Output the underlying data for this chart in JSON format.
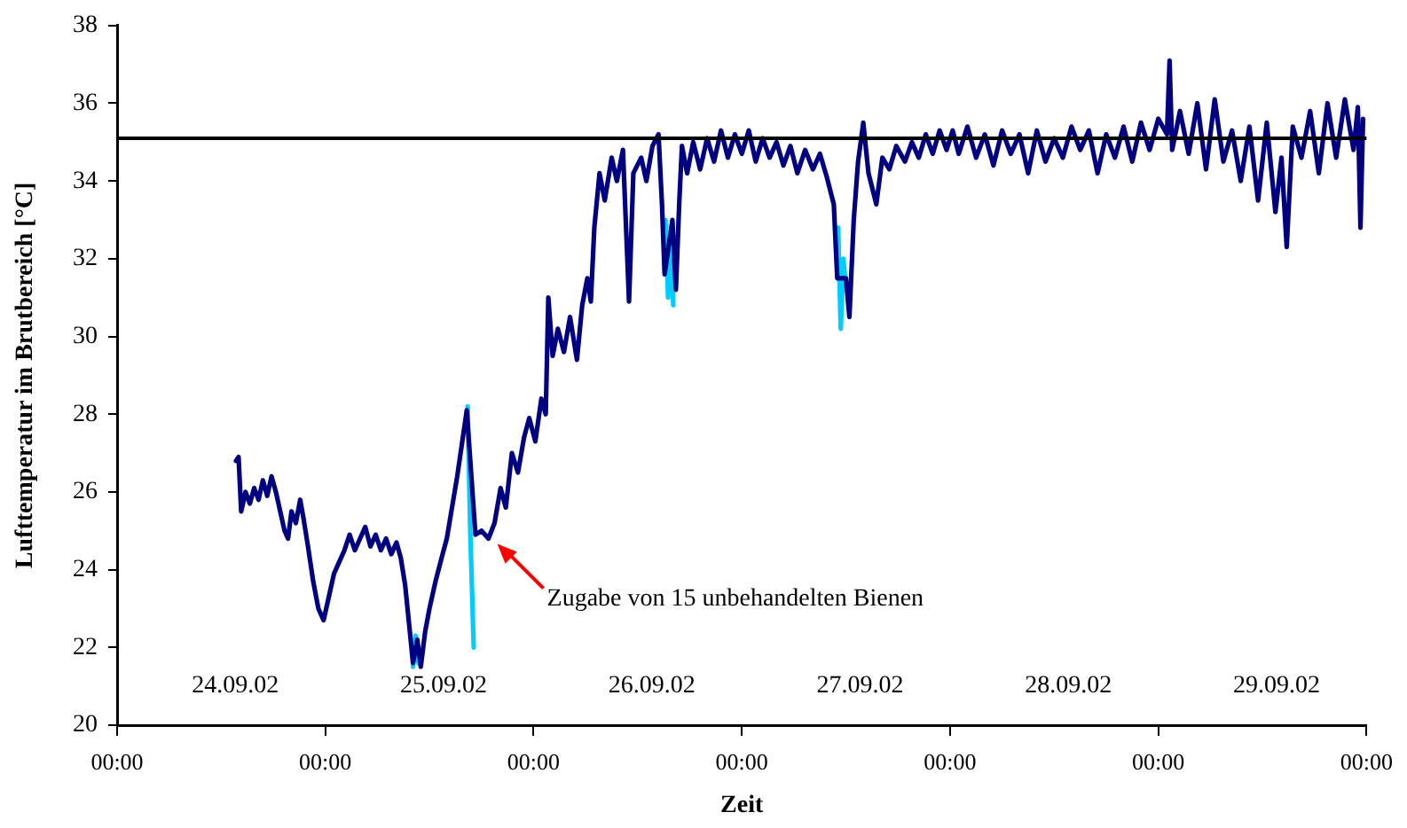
{
  "chart_data": {
    "type": "line",
    "xlabel": "Zeit",
    "ylabel": "Lufttemperatur im Brutbereich [°C]",
    "xlim": [
      "--09-24T00:00",
      "--09-30T00:00"
    ],
    "xticks": [
      {
        "value": "--09-24T00:00",
        "label": "00:00"
      },
      {
        "value": "--09-25T00:00",
        "label": "00:00"
      },
      {
        "value": "--09-26T00:00",
        "label": "00:00"
      },
      {
        "value": "--09-27T00:00",
        "label": "00:00"
      },
      {
        "value": "--09-28T00:00",
        "label": "00:00"
      },
      {
        "value": "--09-29T00:00",
        "label": "00:00"
      },
      {
        "value": "--09-30T00:00",
        "label": "00:00"
      }
    ],
    "ylim": [
      20,
      38
    ],
    "yticks": [
      20,
      22,
      24,
      26,
      28,
      30,
      32,
      34,
      36,
      38
    ],
    "grid": false,
    "legend": false,
    "marker": "none",
    "line_style": "solid",
    "ref_lines": [
      {
        "axis": "y",
        "value": 35.1,
        "color": "#000000"
      }
    ],
    "annotations": [
      "24.09.02",
      "25.09.02",
      "26.09.02",
      "27.09.02",
      "28.09.02",
      "29.09.02",
      {
        "text": "Zugabe von 15 unbehandelten Bienen",
        "x": "--09-25T19:00",
        "y": 24.8
      }
    ],
    "series": [
      {
        "color": "#000080",
        "x": [
          "--09-24T13:42",
          "--09-24T14:00",
          "--09-24T14:18",
          "--09-24T14:48",
          "--09-24T15:18",
          "--09-24T15:48",
          "--09-24T16:18",
          "--09-24T16:48",
          "--09-24T17:18",
          "--09-24T17:48",
          "--09-24T18:18",
          "--09-24T18:48",
          "--09-24T19:18",
          "--09-24T19:42",
          "--09-24T20:06",
          "--09-24T20:36",
          "--09-24T21:06",
          "--09-24T21:30",
          "--09-24T22:00",
          "--09-24T22:36",
          "--09-24T23:12",
          "--09-24T23:48",
          "--09-25T00:24",
          "--09-25T01:00",
          "--09-25T01:36",
          "--09-25T02:12",
          "--09-25T02:48",
          "--09-25T03:24",
          "--09-25T04:00",
          "--09-25T04:36",
          "--09-25T05:12",
          "--09-25T05:48",
          "--09-25T06:24",
          "--09-25T07:00",
          "--09-25T07:36",
          "--09-25T08:12",
          "--09-25T08:42",
          "--09-25T09:12",
          "--09-25T09:42",
          "--09-25T10:06",
          "--09-25T10:36",
          "--09-25T11:00",
          "--09-25T11:30",
          "--09-25T12:00",
          "--09-25T12:42",
          "--09-25T13:24",
          "--09-25T14:00",
          "--09-25T15:12",
          "--09-25T16:18",
          "--09-25T17:18",
          "--09-25T18:00",
          "--09-25T18:48",
          "--09-25T19:30",
          "--09-25T20:12",
          "--09-25T20:48",
          "--09-25T21:30",
          "--09-25T22:12",
          "--09-25T22:54",
          "--09-25T23:30",
          "--09-26T00:12",
          "--09-26T00:54",
          "--09-26T01:24",
          "--09-26T01:42",
          "--09-26T02:12",
          "--09-26T02:48",
          "--09-26T03:30",
          "--09-26T04:12",
          "--09-26T05:00",
          "--09-26T05:36",
          "--09-26T06:12",
          "--09-26T06:36",
          "--09-26T07:00",
          "--09-26T07:36",
          "--09-26T08:12",
          "--09-26T09:00",
          "--09-26T09:36",
          "--09-26T10:18",
          "--09-26T11:00",
          "--09-26T11:30",
          "--09-26T12:24",
          "--09-26T13:00",
          "--09-26T13:42",
          "--09-26T14:24",
          "--09-26T14:48",
          "--09-26T15:06",
          "--09-26T16:00",
          "--09-26T16:24",
          "--09-26T16:48",
          "--09-26T17:06",
          "--09-26T17:42",
          "--09-26T18:24",
          "--09-26T19:12",
          "--09-26T20:00",
          "--09-26T20:48",
          "--09-26T21:36",
          "--09-26T22:24",
          "--09-26T23:12",
          "--09-27T00:00",
          "--09-27T00:48",
          "--09-27T01:36",
          "--09-27T02:24",
          "--09-27T03:12",
          "--09-27T04:00",
          "--09-27T04:48",
          "--09-27T05:36",
          "--09-27T06:24",
          "--09-27T07:18",
          "--09-27T08:12",
          "--09-27T09:00",
          "--09-27T09:48",
          "--09-27T10:36",
          "--09-27T11:00",
          "--09-27T12:00",
          "--09-27T12:24",
          "--09-27T12:54",
          "--09-27T13:24",
          "--09-27T14:00",
          "--09-27T14:36",
          "--09-27T15:30",
          "--09-27T16:12",
          "--09-27T17:00",
          "--09-27T17:48",
          "--09-27T18:48",
          "--09-27T19:36",
          "--09-27T20:24",
          "--09-27T21:12",
          "--09-27T22:00",
          "--09-27T22:48",
          "--09-27T23:36",
          "--09-28T00:18",
          "--09-28T01:00",
          "--09-28T02:00",
          "--09-28T03:00",
          "--09-28T04:00",
          "--09-28T05:00",
          "--09-28T06:00",
          "--09-28T07:00",
          "--09-28T08:00",
          "--09-28T09:00",
          "--09-28T10:00",
          "--09-28T11:00",
          "--09-28T12:00",
          "--09-28T13:00",
          "--09-28T14:00",
          "--09-28T15:00",
          "--09-28T16:00",
          "--09-28T17:00",
          "--09-28T18:00",
          "--09-28T19:00",
          "--09-28T20:00",
          "--09-28T21:00",
          "--09-28T22:00",
          "--09-28T23:00",
          "--09-29T00:00",
          "--09-29T01:00",
          "--09-29T01:18",
          "--09-29T01:36",
          "--09-29T02:30",
          "--09-29T03:30",
          "--09-29T04:30",
          "--09-29T05:30",
          "--09-29T06:30",
          "--09-29T07:30",
          "--09-29T08:30",
          "--09-29T09:30",
          "--09-29T10:30",
          "--09-29T11:30",
          "--09-29T12:30",
          "--09-29T13:30",
          "--09-29T14:12",
          "--09-29T14:48",
          "--09-29T15:30",
          "--09-29T16:30",
          "--09-29T17:30",
          "--09-29T18:30",
          "--09-29T19:30",
          "--09-29T20:30",
          "--09-29T21:30",
          "--09-29T22:30",
          "--09-29T23:00",
          "--09-29T23:18",
          "--09-29T23:36"
        ],
        "values": [
          26.8,
          26.9,
          25.5,
          26.0,
          25.7,
          26.1,
          25.8,
          26.3,
          25.9,
          26.4,
          26.0,
          25.5,
          25.0,
          24.8,
          25.5,
          25.2,
          25.8,
          25.3,
          24.6,
          23.7,
          23.0,
          22.7,
          23.3,
          23.9,
          24.2,
          24.5,
          24.9,
          24.5,
          24.8,
          25.1,
          24.6,
          24.9,
          24.5,
          24.8,
          24.4,
          24.7,
          24.3,
          23.6,
          22.5,
          21.6,
          22.2,
          21.5,
          22.4,
          23.0,
          23.7,
          24.3,
          24.8,
          26.4,
          28.1,
          24.9,
          25.0,
          24.8,
          25.2,
          26.1,
          25.6,
          27.0,
          26.5,
          27.4,
          27.9,
          27.3,
          28.4,
          28.0,
          31.0,
          29.5,
          30.2,
          29.6,
          30.5,
          29.4,
          30.8,
          31.5,
          30.9,
          32.8,
          34.2,
          33.5,
          34.6,
          34.0,
          34.8,
          30.9,
          34.2,
          34.6,
          34.0,
          34.9,
          35.2,
          33.4,
          31.6,
          33.0,
          31.2,
          33.5,
          34.9,
          34.2,
          35.0,
          34.3,
          35.1,
          34.5,
          35.3,
          34.6,
          35.2,
          34.7,
          35.3,
          34.5,
          35.1,
          34.6,
          35.0,
          34.4,
          34.9,
          34.2,
          34.8,
          34.3,
          34.7,
          34.1,
          33.4,
          31.5,
          31.5,
          30.5,
          33.0,
          34.5,
          35.5,
          34.2,
          33.4,
          34.6,
          34.3,
          34.9,
          34.5,
          35.0,
          34.6,
          35.2,
          34.7,
          35.3,
          34.8,
          35.3,
          34.7,
          35.4,
          34.6,
          35.2,
          34.4,
          35.3,
          34.7,
          35.2,
          34.2,
          35.3,
          34.5,
          35.1,
          34.6,
          35.4,
          34.8,
          35.3,
          34.2,
          35.2,
          34.6,
          35.4,
          34.5,
          35.5,
          34.8,
          35.6,
          35.2,
          37.1,
          34.8,
          35.8,
          34.7,
          36.0,
          34.3,
          36.1,
          34.5,
          35.3,
          34.0,
          35.4,
          33.5,
          35.5,
          33.2,
          34.6,
          32.3,
          35.4,
          34.6,
          35.8,
          34.2,
          36.0,
          34.6,
          36.1,
          34.8,
          35.9,
          32.8,
          35.6
        ]
      },
      {
        "color": "#00ccff",
        "x": [
          "--09-25T10:06",
          "--09-25T10:24",
          "--09-25T10:42",
          "--09-25T13:00",
          "--09-25T16:24",
          "--09-25T16:42",
          "--09-25T17:06",
          "--09-26T02:00",
          "--09-26T15:12",
          "--09-26T15:30",
          "--09-26T15:48",
          "--09-26T16:06",
          "--09-26T22:00",
          "--09-27T11:06",
          "--09-27T11:24",
          "--09-27T11:42",
          "--09-27T12:00"
        ],
        "values": [
          21.5,
          22.3,
          21.6,
          null,
          28.2,
          25.0,
          22.0,
          null,
          33.0,
          31.0,
          32.5,
          30.8,
          null,
          32.8,
          30.2,
          32.0,
          31.3
        ]
      }
    ]
  }
}
